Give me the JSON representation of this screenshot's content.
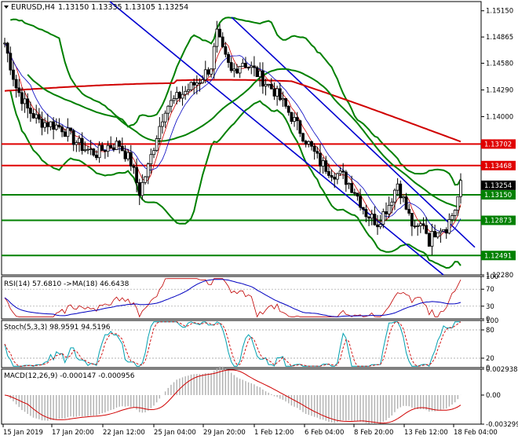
{
  "main": {
    "header": {
      "symbol": "EURUSD,H4",
      "ohlc": "1.13150 1.13335 1.13105 1.13254"
    },
    "price_ticks": [
      "1.15150",
      "1.14865",
      "1.14580",
      "1.14290",
      "1.14000",
      "1.13702",
      "1.13468",
      "1.13254",
      "1.13150",
      "1.12873",
      "1.12491",
      "1.12280"
    ],
    "price_levels": [
      {
        "label": "1.13702",
        "value": 1.13702,
        "color": "#e00000"
      },
      {
        "label": "1.13468",
        "value": 1.13468,
        "color": "#e00000"
      },
      {
        "label": "1.13150",
        "value": 1.1315,
        "color": "#008000"
      },
      {
        "label": "1.12873",
        "value": 1.12873,
        "color": "#008000"
      },
      {
        "label": "1.12491",
        "value": 1.12491,
        "color": "#008000"
      }
    ],
    "current_price": {
      "label": "1.13254",
      "value": 1.13254
    }
  },
  "rsi": {
    "label": "RSI(14) 57.6810  ->MA(18) 46.6438",
    "ticks": [
      "100",
      "70",
      "30",
      "0"
    ]
  },
  "stoch": {
    "label": "Stoch(5,3,3) 98.9591 94.5196",
    "ticks": [
      "100",
      "80",
      "20",
      "0"
    ]
  },
  "macd": {
    "label": "MACD(12,26,9) -0.000147 -0.000956",
    "ticks": [
      "0.002938",
      "0.00",
      "-0.003299"
    ]
  },
  "time_labels": [
    "15 Jan 2019",
    "17 Jan 20:00",
    "22 Jan 12:00",
    "25 Jan 04:00",
    "29 Jan 20:00",
    "1 Feb 12:00",
    "6 Feb 04:00",
    "8 Feb 20:00",
    "13 Feb 12:00",
    "18 Feb 04:00"
  ],
  "chart_data": {
    "type": "candlestick",
    "symbol": "EURUSD",
    "timeframe": "H4",
    "ylim": [
      1.1228,
      1.1525
    ],
    "close_path": [
      [
        0,
        1.148
      ],
      [
        4,
        1.1432
      ],
      [
        8,
        1.1408
      ],
      [
        12,
        1.1395
      ],
      [
        16,
        1.1392
      ],
      [
        20,
        1.1388
      ],
      [
        24,
        1.1375
      ],
      [
        28,
        1.1365
      ],
      [
        32,
        1.136
      ],
      [
        36,
        1.1368
      ],
      [
        40,
        1.137
      ],
      [
        44,
        1.135
      ],
      [
        47,
        1.1318
      ],
      [
        50,
        1.1345
      ],
      [
        53,
        1.138
      ],
      [
        56,
        1.141
      ],
      [
        60,
        1.142
      ],
      [
        64,
        1.143
      ],
      [
        68,
        1.144
      ],
      [
        72,
        1.1455
      ],
      [
        74,
        1.149
      ],
      [
        76,
        1.147
      ],
      [
        79,
        1.1448
      ],
      [
        83,
        1.146
      ],
      [
        87,
        1.145
      ],
      [
        90,
        1.144
      ],
      [
        94,
        1.1428
      ],
      [
        98,
        1.141
      ],
      [
        102,
        1.139
      ],
      [
        106,
        1.137
      ],
      [
        110,
        1.135
      ],
      [
        114,
        1.134
      ],
      [
        118,
        1.1335
      ],
      [
        122,
        1.132
      ],
      [
        126,
        1.1295
      ],
      [
        130,
        1.1285
      ],
      [
        134,
        1.1305
      ],
      [
        137,
        1.1328
      ],
      [
        140,
        1.13
      ],
      [
        143,
        1.1275
      ],
      [
        146,
        1.1285
      ],
      [
        148,
        1.1265
      ],
      [
        151,
        1.128
      ],
      [
        154,
        1.128
      ],
      [
        157,
        1.13
      ],
      [
        159,
        1.1325
      ]
    ],
    "horizontal_levels": [
      1.13702,
      1.13468,
      1.1315,
      1.12873,
      1.12491
    ],
    "moving_averages": [
      {
        "color": "#d00000",
        "description": "long-period MA"
      },
      {
        "color": "#008000",
        "description": "medium-period MA"
      }
    ],
    "indicators": {
      "rsi": {
        "period": 14,
        "value": 57.681,
        "ma_period": 18,
        "ma_value": 46.6438,
        "ylim": [
          0,
          100
        ],
        "levels": [
          70,
          30
        ]
      },
      "stochastic": {
        "params": "5,3,3",
        "k": 98.9591,
        "d": 94.5196,
        "ylim": [
          0,
          100
        ],
        "levels": [
          80,
          20
        ]
      },
      "macd": {
        "params": "12,26,9",
        "main": -0.000147,
        "signal": -0.000956,
        "ylim": [
          -0.003299,
          0.002938
        ]
      }
    }
  }
}
